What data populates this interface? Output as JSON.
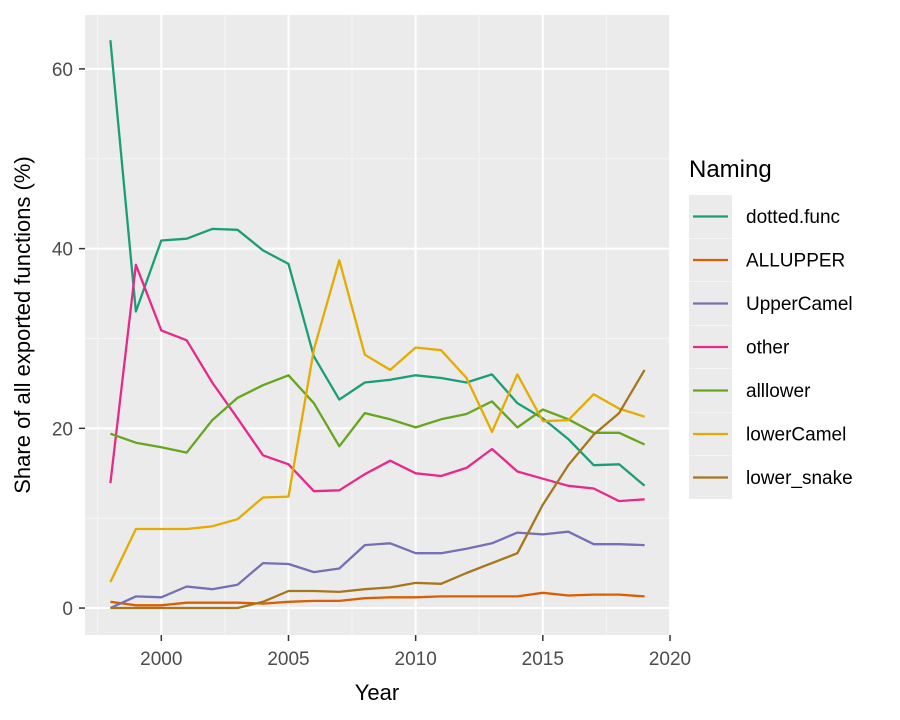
{
  "chart_data": {
    "type": "line",
    "xlabel": "Year",
    "ylabel": "Share of all exported functions (%)",
    "xlim": [
      1997,
      2020
    ],
    "ylim": [
      -3,
      66
    ],
    "x_ticks": [
      2000,
      2005,
      2010,
      2015,
      2020
    ],
    "y_ticks": [
      0,
      20,
      40,
      60
    ],
    "grid": true,
    "legend_title": "Naming",
    "legend_position": "right",
    "x": [
      1998,
      1999,
      2000,
      2001,
      2002,
      2003,
      2004,
      2005,
      2006,
      2007,
      2008,
      2009,
      2010,
      2011,
      2012,
      2013,
      2014,
      2015,
      2016,
      2017,
      2018,
      2019
    ],
    "series": [
      {
        "name": "dotted.func",
        "color": "#1b9e77",
        "values": [
          63.2,
          33.0,
          40.9,
          41.1,
          42.2,
          42.1,
          39.8,
          38.3,
          28.0,
          23.2,
          25.1,
          25.4,
          25.9,
          25.6,
          25.1,
          26.0,
          22.8,
          21.1,
          18.8,
          15.9,
          16.0,
          13.6
        ]
      },
      {
        "name": "ALLUPPER",
        "color": "#d95f02",
        "values": [
          0.7,
          0.3,
          0.3,
          0.6,
          0.6,
          0.6,
          0.5,
          0.7,
          0.8,
          0.8,
          1.1,
          1.2,
          1.2,
          1.3,
          1.3,
          1.3,
          1.3,
          1.7,
          1.4,
          1.5,
          1.5,
          1.3
        ]
      },
      {
        "name": "UpperCamel",
        "color": "#7570b3",
        "values": [
          0.0,
          1.3,
          1.2,
          2.4,
          2.1,
          2.6,
          5.0,
          4.9,
          4.0,
          4.4,
          7.0,
          7.2,
          6.1,
          6.1,
          6.6,
          7.2,
          8.4,
          8.2,
          8.5,
          7.1,
          7.1,
          7.0
        ]
      },
      {
        "name": "other",
        "color": "#e7298a",
        "values": [
          13.9,
          38.2,
          30.9,
          29.8,
          25.1,
          21.1,
          17.0,
          16.0,
          13.0,
          13.1,
          14.9,
          16.4,
          15.0,
          14.7,
          15.6,
          17.7,
          15.2,
          14.4,
          13.6,
          13.3,
          11.9,
          12.1
        ]
      },
      {
        "name": "alllower",
        "color": "#66a61e",
        "values": [
          19.4,
          18.4,
          17.9,
          17.3,
          20.9,
          23.4,
          24.8,
          25.9,
          22.8,
          18.0,
          21.7,
          21.0,
          20.1,
          21.0,
          21.6,
          23.0,
          20.1,
          22.1,
          21.0,
          19.5,
          19.5,
          18.2
        ]
      },
      {
        "name": "lowerCamel",
        "color": "#e6ab02",
        "values": [
          2.9,
          8.8,
          8.8,
          8.8,
          9.1,
          9.9,
          12.3,
          12.4,
          28.8,
          38.7,
          28.2,
          26.5,
          29.0,
          28.7,
          25.6,
          19.6,
          26.0,
          20.8,
          20.9,
          23.8,
          22.2,
          21.3
        ]
      },
      {
        "name": "lower_snake",
        "color": "#a6761d",
        "values": [
          0.0,
          0.0,
          0.0,
          0.0,
          0.0,
          0.0,
          0.7,
          1.9,
          1.9,
          1.8,
          2.1,
          2.3,
          2.8,
          2.7,
          3.9,
          5.0,
          6.1,
          11.5,
          15.9,
          19.3,
          21.7,
          26.5
        ]
      }
    ]
  }
}
